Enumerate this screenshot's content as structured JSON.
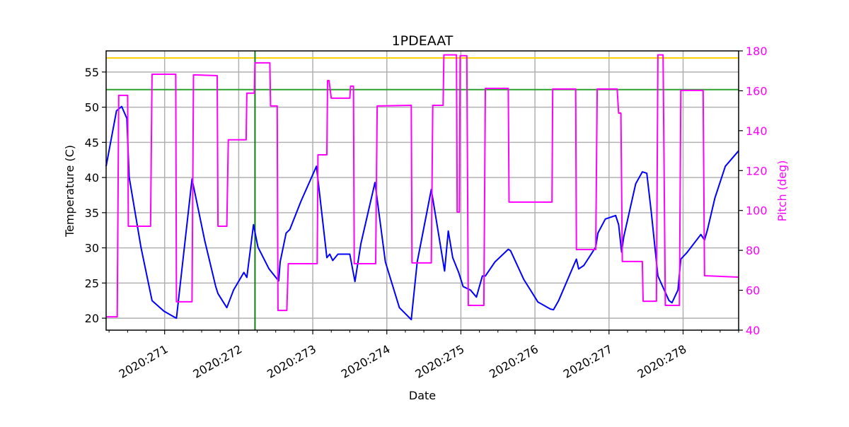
{
  "chart_data": {
    "type": "line",
    "title": "1PDEAAT",
    "xlabel": "Date",
    "ylabel": "Temperature (C)",
    "y2label": "Pitch (deg)",
    "xlim": [
      270.21,
      278.75
    ],
    "ylim": [
      18.3,
      58.0
    ],
    "y2lim": [
      40,
      180
    ],
    "grid": true,
    "x_ticks": [
      271,
      272,
      273,
      274,
      275,
      276,
      277,
      278
    ],
    "x_tick_labels": [
      "2020:271",
      "2020:272",
      "2020:273",
      "2020:274",
      "2020:275",
      "2020:276",
      "2020:277",
      "2020:278"
    ],
    "y_ticks": [
      20,
      25,
      30,
      35,
      40,
      45,
      50,
      55
    ],
    "y_tick_labels": [
      "20",
      "25",
      "30",
      "35",
      "40",
      "45",
      "50",
      "55"
    ],
    "y2_ticks": [
      40,
      60,
      80,
      100,
      120,
      140,
      160,
      180
    ],
    "y2_tick_labels": [
      "40",
      "60",
      "80",
      "100",
      "120",
      "140",
      "160",
      "180"
    ],
    "colors": {
      "temperature": "#0000ff",
      "pitch": "#ff00ff",
      "limit_high": "#ffd000",
      "limit_low": "#2ca02c",
      "marker": "#138013",
      "y2axis": "#ff00ff"
    },
    "hlines": [
      {
        "y": 57.0,
        "color": "#ffd000"
      },
      {
        "y": 52.5,
        "color": "#2ca02c"
      }
    ],
    "vlines": [
      {
        "x": 272.22,
        "color": "#138013"
      }
    ],
    "series": [
      {
        "axis": "left",
        "color": "#0000ff",
        "points": [
          [
            270.21,
            41.6
          ],
          [
            270.35,
            49.5
          ],
          [
            270.42,
            50.1
          ],
          [
            270.49,
            48.4
          ],
          [
            270.52,
            40.1
          ],
          [
            270.68,
            30.1
          ],
          [
            270.83,
            22.5
          ],
          [
            270.99,
            21.0
          ],
          [
            271.14,
            20.1
          ],
          [
            271.16,
            20.0
          ],
          [
            271.37,
            39.8
          ],
          [
            271.54,
            31.1
          ],
          [
            271.69,
            24.5
          ],
          [
            271.72,
            23.5
          ],
          [
            271.84,
            21.5
          ],
          [
            271.93,
            24.0
          ],
          [
            272.07,
            26.5
          ],
          [
            272.11,
            25.8
          ],
          [
            272.2,
            33.3
          ],
          [
            272.26,
            30.1
          ],
          [
            272.41,
            27.0
          ],
          [
            272.54,
            25.3
          ],
          [
            272.56,
            28.0
          ],
          [
            272.64,
            32.1
          ],
          [
            272.69,
            32.6
          ],
          [
            272.84,
            36.6
          ],
          [
            273.05,
            41.6
          ],
          [
            273.19,
            28.6
          ],
          [
            273.23,
            29.1
          ],
          [
            273.27,
            28.2
          ],
          [
            273.34,
            29.1
          ],
          [
            273.5,
            29.1
          ],
          [
            273.57,
            25.2
          ],
          [
            273.65,
            30.6
          ],
          [
            273.84,
            39.3
          ],
          [
            273.98,
            28.0
          ],
          [
            274.17,
            21.5
          ],
          [
            274.33,
            19.8
          ],
          [
            274.41,
            28.0
          ],
          [
            274.6,
            38.3
          ],
          [
            274.78,
            26.7
          ],
          [
            274.83,
            32.4
          ],
          [
            274.89,
            28.6
          ],
          [
            274.97,
            26.5
          ],
          [
            275.03,
            24.5
          ],
          [
            275.13,
            24.0
          ],
          [
            275.21,
            23.0
          ],
          [
            275.29,
            26.0
          ],
          [
            275.33,
            26.0
          ],
          [
            275.46,
            28.0
          ],
          [
            275.64,
            29.8
          ],
          [
            275.67,
            29.6
          ],
          [
            275.85,
            25.5
          ],
          [
            276.04,
            22.3
          ],
          [
            276.21,
            21.3
          ],
          [
            276.25,
            21.2
          ],
          [
            276.32,
            22.5
          ],
          [
            276.56,
            28.4
          ],
          [
            276.59,
            27.0
          ],
          [
            276.66,
            27.5
          ],
          [
            276.82,
            30.1
          ],
          [
            276.85,
            32.1
          ],
          [
            276.95,
            34.1
          ],
          [
            277.09,
            34.6
          ],
          [
            277.13,
            33.3
          ],
          [
            277.17,
            29.4
          ],
          [
            277.2,
            31.6
          ],
          [
            277.36,
            39.1
          ],
          [
            277.45,
            40.8
          ],
          [
            277.51,
            40.6
          ],
          [
            277.57,
            35.1
          ],
          [
            277.66,
            26.0
          ],
          [
            277.81,
            22.5
          ],
          [
            277.85,
            22.2
          ],
          [
            277.93,
            24.0
          ],
          [
            277.97,
            28.4
          ],
          [
            278.05,
            29.3
          ],
          [
            278.24,
            31.9
          ],
          [
            278.29,
            31.1
          ],
          [
            278.33,
            32.6
          ],
          [
            278.43,
            37.1
          ],
          [
            278.57,
            41.6
          ],
          [
            278.75,
            43.8
          ]
        ]
      },
      {
        "axis": "right",
        "color": "#ff00ff",
        "points": [
          [
            270.21,
            46.7
          ],
          [
            270.36,
            46.7
          ],
          [
            270.38,
            157.7
          ],
          [
            270.5,
            157.7
          ],
          [
            270.51,
            92.1
          ],
          [
            270.81,
            92.1
          ],
          [
            270.83,
            168.3
          ],
          [
            271.15,
            168.3
          ],
          [
            271.16,
            54.2
          ],
          [
            271.37,
            54.2
          ],
          [
            271.39,
            168.0
          ],
          [
            271.71,
            167.6
          ],
          [
            271.72,
            92.1
          ],
          [
            271.84,
            92.1
          ],
          [
            271.86,
            135.4
          ],
          [
            272.1,
            135.4
          ],
          [
            272.11,
            158.8
          ],
          [
            272.21,
            158.8
          ],
          [
            272.22,
            174.0
          ],
          [
            272.42,
            174.0
          ],
          [
            272.43,
            152.4
          ],
          [
            272.52,
            152.4
          ],
          [
            272.53,
            49.9
          ],
          [
            272.65,
            49.9
          ],
          [
            272.67,
            73.3
          ],
          [
            273.06,
            73.3
          ],
          [
            273.07,
            127.9
          ],
          [
            273.19,
            127.9
          ],
          [
            273.2,
            165.1
          ],
          [
            273.22,
            165.1
          ],
          [
            273.25,
            156.3
          ],
          [
            273.5,
            156.3
          ],
          [
            273.51,
            162.3
          ],
          [
            273.55,
            162.3
          ],
          [
            273.56,
            73.3
          ],
          [
            273.85,
            73.3
          ],
          [
            273.87,
            152.4
          ],
          [
            274.33,
            152.7
          ],
          [
            274.34,
            73.7
          ],
          [
            274.6,
            73.7
          ],
          [
            274.62,
            152.7
          ],
          [
            274.76,
            152.7
          ],
          [
            274.77,
            178.0
          ],
          [
            274.94,
            178.0
          ],
          [
            274.95,
            99.2
          ],
          [
            274.98,
            99.2
          ],
          [
            274.99,
            177.6
          ],
          [
            275.08,
            177.6
          ],
          [
            275.1,
            52.4
          ],
          [
            275.31,
            52.4
          ],
          [
            275.33,
            161.2
          ],
          [
            275.64,
            161.2
          ],
          [
            275.65,
            104.2
          ],
          [
            276.23,
            104.2
          ],
          [
            276.24,
            160.9
          ],
          [
            276.55,
            160.9
          ],
          [
            276.56,
            80.4
          ],
          [
            276.82,
            80.4
          ],
          [
            276.84,
            160.9
          ],
          [
            277.11,
            160.9
          ],
          [
            277.13,
            148.8
          ],
          [
            277.16,
            148.8
          ],
          [
            277.18,
            74.4
          ],
          [
            277.45,
            74.4
          ],
          [
            277.46,
            54.5
          ],
          [
            277.64,
            54.5
          ],
          [
            277.66,
            178.0
          ],
          [
            277.73,
            178.0
          ],
          [
            277.76,
            52.4
          ],
          [
            277.95,
            52.4
          ],
          [
            277.97,
            160.2
          ],
          [
            278.27,
            160.2
          ],
          [
            278.29,
            67.3
          ],
          [
            278.75,
            66.6
          ]
        ]
      }
    ]
  }
}
